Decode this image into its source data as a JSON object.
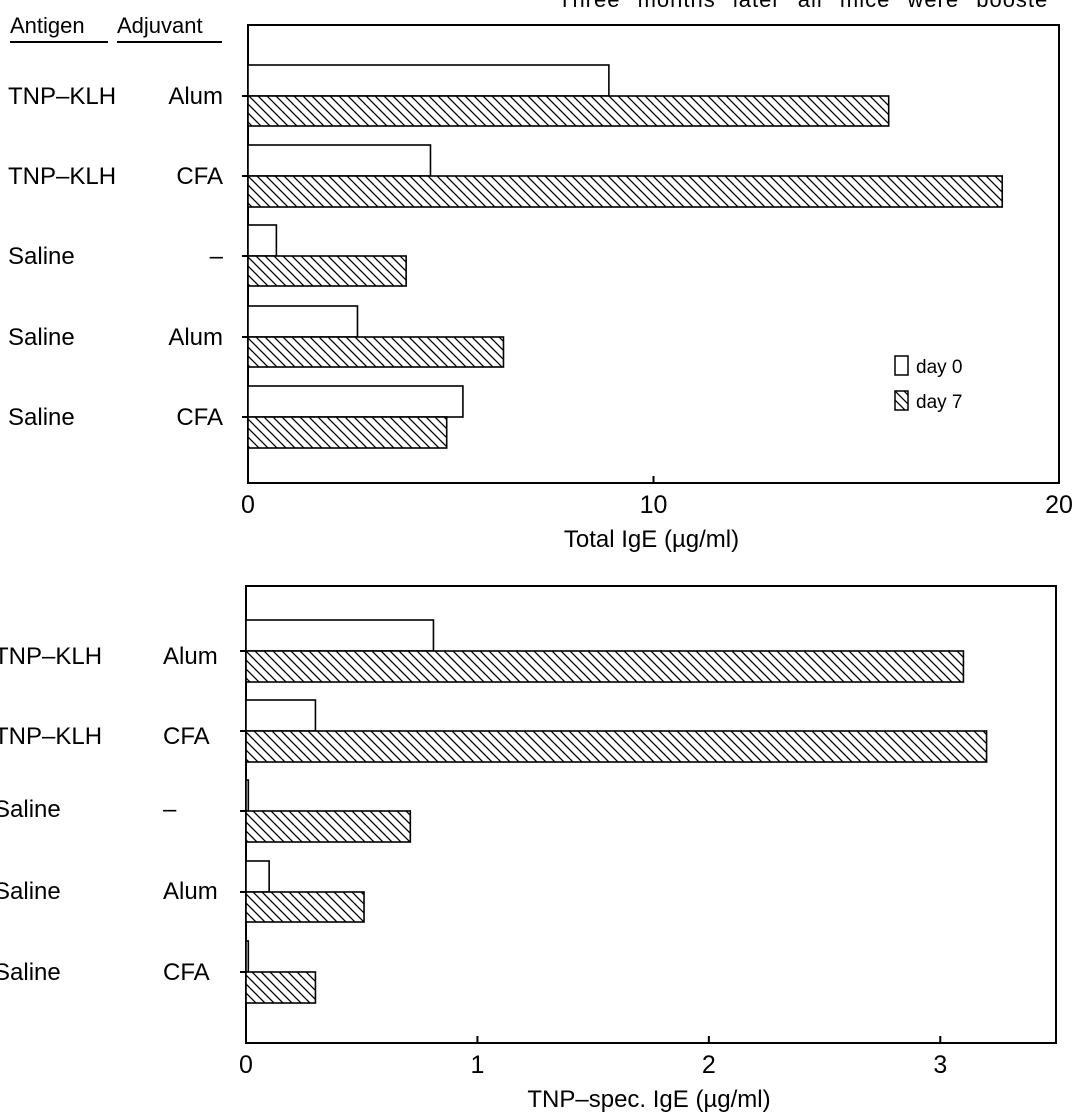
{
  "top_caption": "Three months later all mice were booste",
  "headers": {
    "antigen": "Antigen",
    "adjuvant": "Adjuvant"
  },
  "chart_data": [
    {
      "type": "bar",
      "orientation": "horizontal",
      "categories": [
        {
          "antigen": "TNP–KLH",
          "adjuvant": "Alum"
        },
        {
          "antigen": "TNP–KLH",
          "adjuvant": "CFA"
        },
        {
          "antigen": "Saline",
          "adjuvant": "–"
        },
        {
          "antigen": "Saline",
          "adjuvant": "Alum"
        },
        {
          "antigen": "Saline",
          "adjuvant": "CFA"
        }
      ],
      "series": [
        {
          "name": "day 0",
          "pattern": "open",
          "values": [
            8.9,
            4.5,
            0.7,
            2.7,
            5.3
          ]
        },
        {
          "name": "day 7",
          "pattern": "hatched",
          "values": [
            15.8,
            18.6,
            3.9,
            6.3,
            4.9
          ]
        }
      ],
      "xlabel": "Total IgE (µg/ml)",
      "xlim": [
        0,
        20
      ],
      "xticks": [
        0,
        10,
        20
      ],
      "legend_position": "lower-right",
      "grid": false
    },
    {
      "type": "bar",
      "orientation": "horizontal",
      "categories": [
        {
          "antigen": "TNP–KLH",
          "adjuvant": "Alum"
        },
        {
          "antigen": "TNP–KLH",
          "adjuvant": "CFA"
        },
        {
          "antigen": "Saline",
          "adjuvant": "–"
        },
        {
          "antigen": "Saline",
          "adjuvant": "Alum"
        },
        {
          "antigen": "Saline",
          "adjuvant": "CFA"
        }
      ],
      "series": [
        {
          "name": "day 0",
          "pattern": "open",
          "values": [
            0.81,
            0.3,
            0.01,
            0.1,
            0.01
          ]
        },
        {
          "name": "day 7",
          "pattern": "hatched",
          "values": [
            3.1,
            3.2,
            0.71,
            0.51,
            0.3
          ]
        }
      ],
      "xlabel": "TNP–spec. IgE (µg/ml)",
      "xlim": [
        0,
        3.5
      ],
      "xticks": [
        0,
        1,
        2,
        3
      ],
      "grid": false
    }
  ]
}
